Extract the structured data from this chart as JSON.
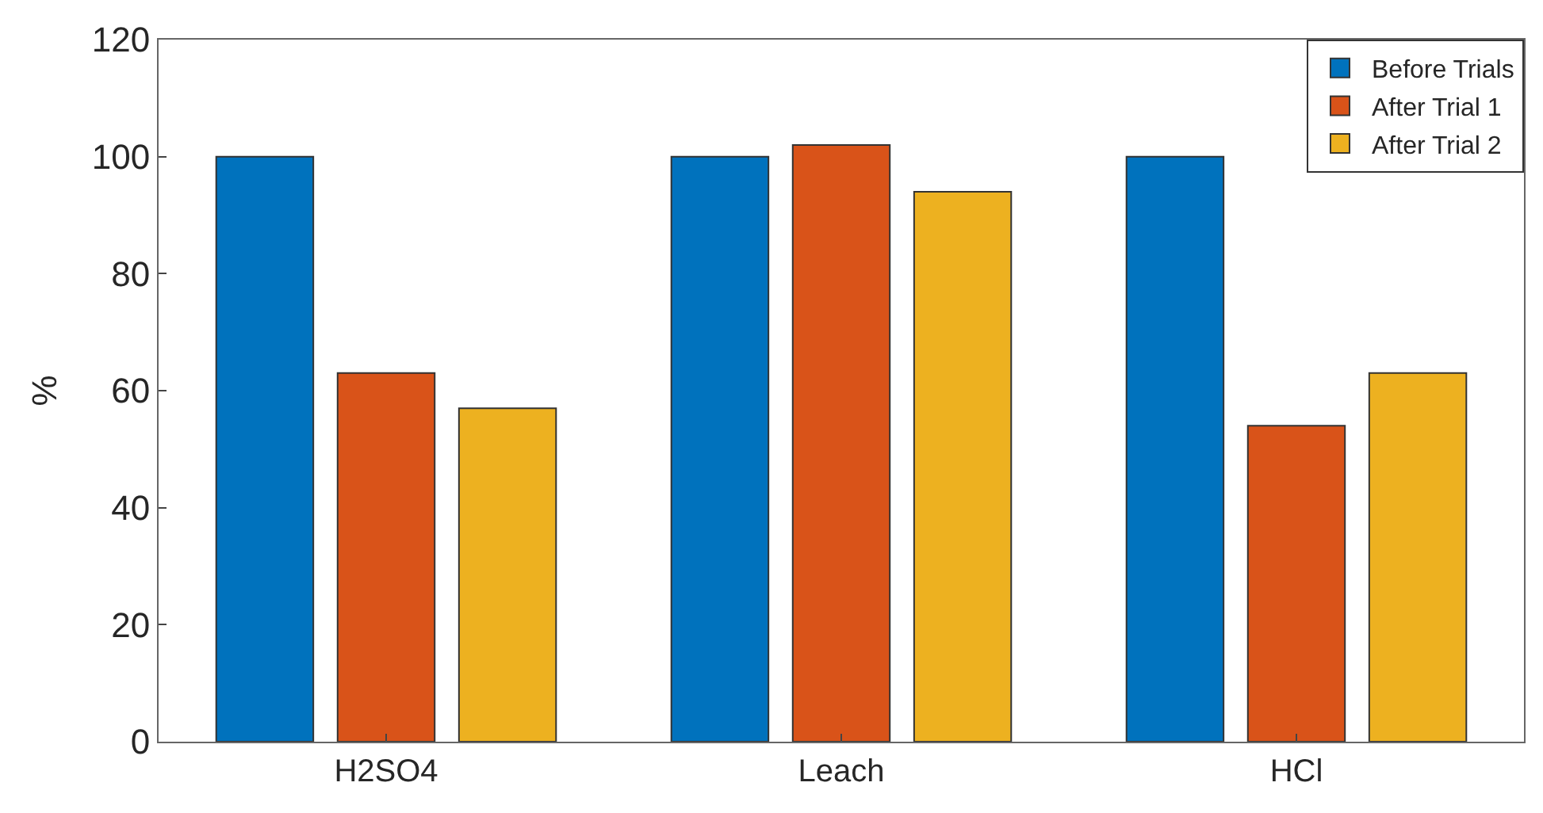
{
  "chart_data": {
    "type": "bar",
    "ylabel": "%",
    "categories": [
      "H2SO4",
      "Leach",
      "HCl"
    ],
    "series": [
      {
        "name": "Before Trials",
        "color": "#0072bd",
        "values": [
          100,
          100,
          100
        ]
      },
      {
        "name": "After Trial 1",
        "color": "#d95319",
        "values": [
          63,
          102,
          54
        ]
      },
      {
        "name": "After Trial 2",
        "color": "#edb120",
        "values": [
          57,
          94,
          63
        ]
      }
    ],
    "ylim": [
      0,
      120
    ],
    "yticks": [
      0,
      20,
      40,
      60,
      80,
      100,
      120
    ],
    "legend": "top right"
  }
}
